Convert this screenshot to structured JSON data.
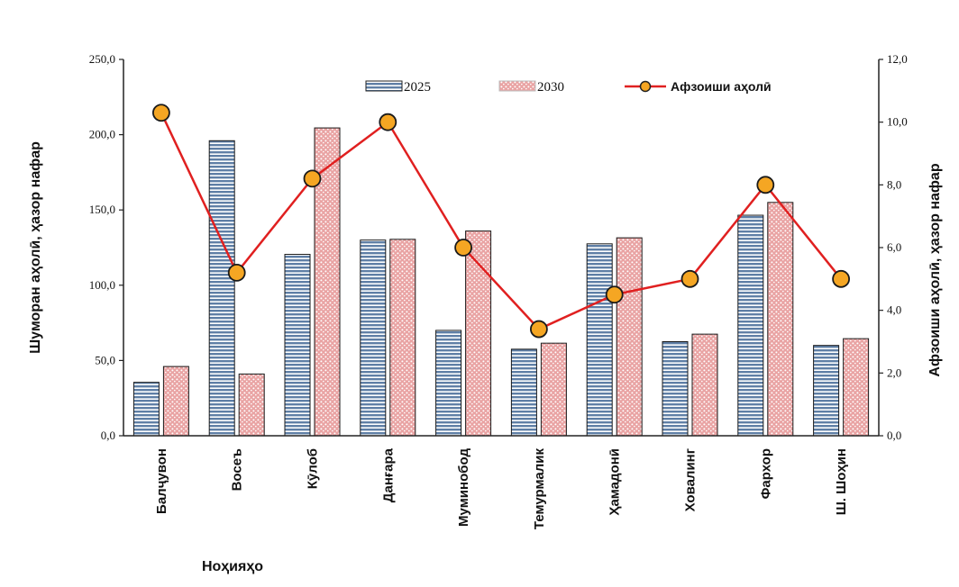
{
  "chart_data": {
    "type": "bar",
    "categories": [
      "Балҷувон",
      "Восеъ",
      "Кӯлоб",
      "Данғара",
      "Муминобод",
      "Темурмалик",
      "Ҳамадонӣ",
      "Ховалинг",
      "Фархор",
      "Ш. Шоҳин"
    ],
    "series": [
      {
        "name": "2025",
        "type": "bar",
        "axis": "left",
        "color": "#5f7fa6",
        "values": [
          35.5,
          196.0,
          120.5,
          130.0,
          70.0,
          57.5,
          127.5,
          62.5,
          146.5,
          60.0
        ]
      },
      {
        "name": "2030",
        "type": "bar",
        "axis": "left",
        "color": "#e9a5a5",
        "values": [
          46.0,
          41.0,
          204.5,
          130.5,
          136.0,
          61.5,
          131.5,
          67.5,
          155.0,
          64.5
        ]
      },
      {
        "name": "Афзоиши аҳолӣ",
        "type": "line",
        "axis": "right",
        "color": "#e02020",
        "marker_color": "#f5a623",
        "values": [
          10.3,
          5.2,
          8.2,
          10.0,
          6.0,
          3.4,
          4.5,
          5.0,
          8.0,
          5.0
        ]
      }
    ],
    "xlabel": "Ноҳияҳо",
    "ylabel": "Шуморан аҳолӣ, ҳазор нафар",
    "ylabel_right": "Афзоиши аҳолӣ, ҳазор нафар",
    "ylim": [
      0,
      250
    ],
    "ylim_right": [
      0,
      12
    ],
    "yticks": [
      "0,0",
      "50,0",
      "100,0",
      "150,0",
      "200,0",
      "250,0"
    ],
    "yticks_right": [
      "0,0",
      "2,0",
      "4,0",
      "6,0",
      "8,0",
      "10,0",
      "12,0"
    ],
    "legend_position": "top",
    "grid": false
  }
}
